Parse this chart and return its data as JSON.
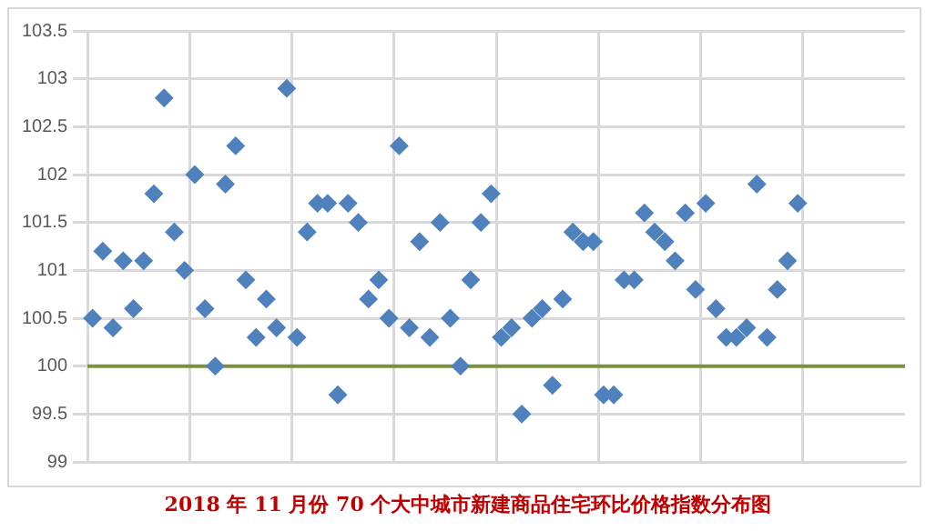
{
  "chart_data": {
    "type": "scatter",
    "title": "2018 年 11 月份 70 个大中城市新建商品住宅环比价格指数分布图",
    "categories": [
      null,
      null,
      null,
      null,
      null,
      null,
      null,
      null,
      null,
      null,
      null,
      null,
      null,
      null,
      null,
      null,
      null,
      null,
      null,
      null,
      null,
      null,
      null,
      null,
      null,
      null,
      null,
      null,
      null,
      null,
      null,
      null,
      null,
      null,
      null,
      null,
      null,
      null,
      null,
      null,
      null,
      null,
      null,
      null,
      null,
      null,
      null,
      null,
      null,
      null,
      null,
      null,
      null,
      null,
      null,
      null,
      null,
      null,
      null,
      null,
      null,
      null,
      null,
      null,
      null,
      null,
      null,
      null,
      null,
      null,
      null,
      null,
      null,
      null,
      null,
      null,
      null,
      null,
      null,
      null
    ],
    "series": [
      {
        "color": "#4f81bd",
        "values": [
          100.5,
          101.2,
          100.4,
          101.1,
          100.6,
          101.1,
          101.8,
          102.8,
          101.4,
          101.0,
          102.0,
          100.6,
          100.0,
          101.9,
          102.3,
          100.9,
          100.3,
          100.7,
          100.4,
          102.9,
          100.3,
          101.4,
          101.7,
          101.7,
          99.7,
          101.7,
          101.5,
          100.7,
          100.9,
          100.5,
          102.3,
          100.4,
          101.3,
          100.3,
          101.5,
          100.5,
          100.0,
          100.9,
          101.5,
          101.8,
          100.3,
          100.4,
          99.5,
          100.5,
          100.6,
          99.8,
          100.7,
          101.4,
          101.3,
          101.3,
          99.7,
          99.7,
          100.9,
          100.9,
          101.6,
          101.4,
          101.3,
          101.1,
          101.6,
          100.8,
          101.7,
          100.6,
          100.3,
          100.3,
          100.4,
          101.9,
          100.3,
          100.8,
          101.1,
          101.7,
          null,
          null,
          null,
          null,
          null,
          null,
          null,
          null,
          null,
          null
        ]
      }
    ],
    "ylim": [
      99,
      103.5
    ],
    "yticks": [
      99,
      99.5,
      100,
      100.5,
      101,
      101.5,
      102,
      102.5,
      103,
      103.5
    ],
    "tick_labels": "y",
    "grid": true,
    "marker": "diamond",
    "ref_lines": [
      {
        "axis": "y",
        "value": 100,
        "color": "#77933c"
      }
    ]
  }
}
